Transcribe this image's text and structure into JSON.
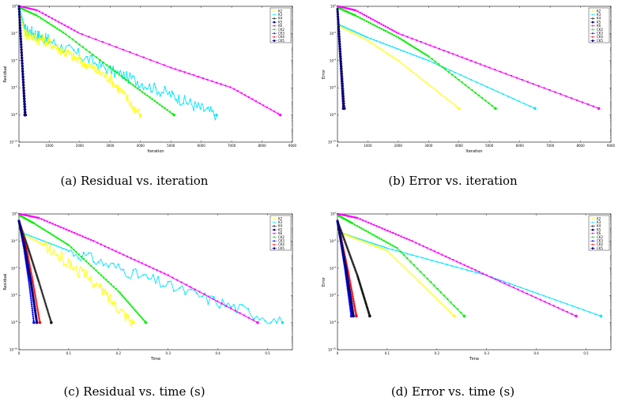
{
  "panels": [
    {
      "caption": "(a)  Residual vs. iteration"
    },
    {
      "caption": "(b)  Error vs. iteration"
    },
    {
      "caption": "(c)  Residual vs. time (s)"
    },
    {
      "caption": "(d)  Error vs. time (s)"
    }
  ],
  "legend_labels": [
    "K2",
    "K3",
    "K4",
    "K5",
    "K6",
    "CK2",
    "CK3",
    "CK4",
    "CK5"
  ],
  "colors": {
    "cyan": "#00e5ff",
    "yellow": "#ffff00",
    "magenta": "#ff00ff",
    "green": "#00ee00",
    "black": "#000000",
    "blue": "#0000ff",
    "red": "#ee0000",
    "navy": "#000080"
  },
  "chart_data": [
    {
      "type": "line",
      "xlabel": "Iteration",
      "ylabel": "Residual",
      "ylog": true,
      "xlim": [
        0,
        9000
      ],
      "ylim": [
        1e-10,
        1
      ],
      "xticks": [
        0,
        1000,
        2000,
        3000,
        4000,
        5000,
        6000,
        7000,
        8000,
        9000
      ],
      "yticks_exp": [
        0,
        -2,
        -4,
        -6,
        -8,
        -10
      ],
      "series": [
        {
          "name": "K3",
          "color": "cyan",
          "marker": "star",
          "noisy": true,
          "points": [
            [
              0,
              1
            ],
            [
              200,
              0.02
            ],
            [
              1000,
              0.003
            ],
            [
              3000,
              2e-05
            ],
            [
              5000,
              3e-07
            ],
            [
              6500,
              1e-08
            ]
          ]
        },
        {
          "name": "K4",
          "color": "yellow",
          "marker": "x",
          "noisy": true,
          "points": [
            [
              0,
              0.5
            ],
            [
              200,
              0.01
            ],
            [
              1000,
              0.002
            ],
            [
              2000,
              0.0001
            ],
            [
              3000,
              5e-06
            ],
            [
              4000,
              1e-08
            ]
          ]
        },
        {
          "name": "K5",
          "color": "green",
          "marker": "triangle",
          "noisy": false,
          "points": [
            [
              0,
              0.8
            ],
            [
              600,
              0.2
            ],
            [
              1500,
              0.01
            ],
            [
              3000,
              3e-05
            ],
            [
              4000,
              6e-07
            ],
            [
              5100,
              1e-08
            ]
          ]
        },
        {
          "name": "K6",
          "color": "magenta",
          "marker": "triangle",
          "noisy": false,
          "points": [
            [
              0,
              1
            ],
            [
              600,
              0.5
            ],
            [
              2000,
              0.01
            ],
            [
              5000,
              3e-05
            ],
            [
              7000,
              1e-06
            ],
            [
              8600,
              1e-08
            ]
          ]
        },
        {
          "name": "CK2",
          "color": "black",
          "marker": "circle",
          "noisy": false,
          "points": [
            [
              0,
              1
            ],
            [
              220,
              1e-08
            ]
          ]
        },
        {
          "name": "CK3",
          "color": "blue",
          "marker": "diamond",
          "noisy": false,
          "points": [
            [
              0,
              1
            ],
            [
              190,
              1e-08
            ]
          ]
        },
        {
          "name": "CK4",
          "color": "red",
          "marker": "circle",
          "noisy": false,
          "points": [
            [
              0,
              1
            ],
            [
              210,
              1e-08
            ]
          ]
        },
        {
          "name": "CK5",
          "color": "navy",
          "marker": "square",
          "noisy": false,
          "points": [
            [
              0,
              1
            ],
            [
              200,
              1e-08
            ]
          ]
        }
      ]
    },
    {
      "type": "line",
      "xlabel": "Iteration",
      "ylabel": "Error",
      "ylog": true,
      "xlim": [
        0,
        9000
      ],
      "ylim": [
        1e-10,
        1
      ],
      "xticks": [
        0,
        1000,
        2000,
        3000,
        4000,
        5000,
        6000,
        7000,
        8000,
        9000
      ],
      "yticks_exp": [
        0,
        -2,
        -4,
        -6,
        -8,
        -10
      ],
      "series": [
        {
          "name": "K3",
          "color": "cyan",
          "marker": "star",
          "noisy": false,
          "points": [
            [
              0,
              0.05
            ],
            [
              1000,
              0.005
            ],
            [
              3000,
              0.0001
            ],
            [
              6500,
              3e-08
            ]
          ]
        },
        {
          "name": "K4",
          "color": "yellow",
          "marker": "x",
          "noisy": false,
          "points": [
            [
              0,
              0.04
            ],
            [
              1000,
              0.003
            ],
            [
              2000,
              0.0001
            ],
            [
              4000,
              3e-08
            ]
          ]
        },
        {
          "name": "K5",
          "color": "green",
          "marker": "triangle",
          "noisy": false,
          "points": [
            [
              0,
              0.8
            ],
            [
              600,
              0.2
            ],
            [
              2000,
              0.005
            ],
            [
              3000,
              0.0002
            ],
            [
              5200,
              3e-08
            ]
          ]
        },
        {
          "name": "K6",
          "color": "magenta",
          "marker": "triangle",
          "noisy": false,
          "points": [
            [
              0,
              1
            ],
            [
              600,
              0.5
            ],
            [
              2000,
              0.01
            ],
            [
              5000,
              3e-05
            ],
            [
              8600,
              3e-08
            ]
          ]
        },
        {
          "name": "CK2",
          "color": "black",
          "marker": "circle",
          "noisy": false,
          "points": [
            [
              0,
              0.6
            ],
            [
              230,
              3e-08
            ]
          ]
        },
        {
          "name": "CK3",
          "color": "blue",
          "marker": "diamond",
          "noisy": false,
          "points": [
            [
              0,
              0.6
            ],
            [
              190,
              3e-08
            ]
          ]
        },
        {
          "name": "CK4",
          "color": "red",
          "marker": "circle",
          "noisy": false,
          "points": [
            [
              0,
              0.6
            ],
            [
              210,
              3e-08
            ]
          ]
        },
        {
          "name": "CK5",
          "color": "navy",
          "marker": "square",
          "noisy": false,
          "points": [
            [
              0,
              0.6
            ],
            [
              200,
              3e-08
            ]
          ]
        }
      ]
    },
    {
      "type": "line",
      "xlabel": "Time",
      "ylabel": "Residual",
      "ylog": true,
      "xlim": [
        0,
        0.55
      ],
      "ylim": [
        1e-10,
        1
      ],
      "xticks": [
        0,
        0.1,
        0.2,
        0.3,
        0.4,
        0.5
      ],
      "yticks_exp": [
        0,
        -2,
        -4,
        -6,
        -8,
        -10
      ],
      "series": [
        {
          "name": "K3",
          "color": "cyan",
          "marker": "star",
          "noisy": true,
          "points": [
            [
              0,
              0.05
            ],
            [
              0.1,
              0.002
            ],
            [
              0.3,
              5e-06
            ],
            [
              0.53,
              1e-08
            ]
          ]
        },
        {
          "name": "K4",
          "color": "yellow",
          "marker": "x",
          "noisy": true,
          "points": [
            [
              0,
              0.05
            ],
            [
              0.05,
              0.005
            ],
            [
              0.15,
              1e-05
            ],
            [
              0.23,
              1e-08
            ]
          ]
        },
        {
          "name": "K5",
          "color": "green",
          "marker": "triangle",
          "noisy": false,
          "points": [
            [
              0,
              0.8
            ],
            [
              0.03,
              0.2
            ],
            [
              0.1,
              0.005
            ],
            [
              0.2,
              2e-06
            ],
            [
              0.255,
              1e-08
            ]
          ]
        },
        {
          "name": "K6",
          "color": "magenta",
          "marker": "triangle",
          "noisy": false,
          "points": [
            [
              0,
              1
            ],
            [
              0.04,
              0.5
            ],
            [
              0.15,
              0.01
            ],
            [
              0.3,
              3e-05
            ],
            [
              0.48,
              1e-08
            ]
          ]
        },
        {
          "name": "CK2",
          "color": "black",
          "marker": "circle",
          "noisy": false,
          "points": [
            [
              0,
              0.3
            ],
            [
              0.02,
              0.002
            ],
            [
              0.04,
              1e-05
            ],
            [
              0.065,
              1e-08
            ]
          ]
        },
        {
          "name": "CK3",
          "color": "blue",
          "marker": "diamond",
          "noisy": false,
          "points": [
            [
              0,
              0.3
            ],
            [
              0.01,
              0.003
            ],
            [
              0.02,
              1e-05
            ],
            [
              0.03,
              1e-08
            ]
          ]
        },
        {
          "name": "CK4",
          "color": "red",
          "marker": "circle",
          "noisy": false,
          "points": [
            [
              0,
              0.3
            ],
            [
              0.015,
              0.003
            ],
            [
              0.028,
              1e-05
            ],
            [
              0.042,
              1e-08
            ]
          ]
        },
        {
          "name": "CK5",
          "color": "navy",
          "marker": "square",
          "noisy": false,
          "points": [
            [
              0,
              0.3
            ],
            [
              0.012,
              0.003
            ],
            [
              0.024,
              1e-05
            ],
            [
              0.036,
              1e-08
            ]
          ]
        }
      ]
    },
    {
      "type": "line",
      "xlabel": "Time",
      "ylabel": "Error",
      "ylog": true,
      "xlim": [
        0,
        0.55
      ],
      "ylim": [
        1e-10,
        1
      ],
      "xticks": [
        0,
        0.1,
        0.2,
        0.3,
        0.4,
        0.5
      ],
      "yticks_exp": [
        0,
        -2,
        -4,
        -6,
        -8,
        -10
      ],
      "series": [
        {
          "name": "K3",
          "color": "cyan",
          "marker": "star",
          "noisy": false,
          "points": [
            [
              0,
              0.05
            ],
            [
              0.1,
              0.003
            ],
            [
              0.3,
              3e-05
            ],
            [
              0.53,
              3e-08
            ]
          ]
        },
        {
          "name": "K4",
          "color": "yellow",
          "marker": "x",
          "noisy": false,
          "points": [
            [
              0,
              0.05
            ],
            [
              0.1,
              0.002
            ],
            [
              0.235,
              3e-08
            ]
          ]
        },
        {
          "name": "K5",
          "color": "green",
          "marker": "triangle",
          "noisy": false,
          "points": [
            [
              0,
              0.8
            ],
            [
              0.03,
              0.2
            ],
            [
              0.12,
              0.003
            ],
            [
              0.255,
              3e-08
            ]
          ]
        },
        {
          "name": "K6",
          "color": "magenta",
          "marker": "triangle",
          "noisy": false,
          "points": [
            [
              0,
              1
            ],
            [
              0.04,
              0.5
            ],
            [
              0.15,
              0.01
            ],
            [
              0.3,
              3e-05
            ],
            [
              0.48,
              3e-08
            ]
          ]
        },
        {
          "name": "CK2",
          "color": "black",
          "marker": "circle",
          "noisy": false,
          "points": [
            [
              0,
              0.3
            ],
            [
              0.04,
              3e-05
            ],
            [
              0.065,
              3e-08
            ]
          ]
        },
        {
          "name": "CK3",
          "color": "blue",
          "marker": "diamond",
          "noisy": false,
          "points": [
            [
              0,
              0.3
            ],
            [
              0.015,
              0.0001
            ],
            [
              0.028,
              3e-08
            ]
          ]
        },
        {
          "name": "CK4",
          "color": "red",
          "marker": "circle",
          "noisy": false,
          "points": [
            [
              0,
              0.3
            ],
            [
              0.02,
              0.0001
            ],
            [
              0.038,
              3e-08
            ]
          ]
        },
        {
          "name": "CK5",
          "color": "navy",
          "marker": "square",
          "noisy": false,
          "points": [
            [
              0,
              0.3
            ],
            [
              0.017,
              0.0001
            ],
            [
              0.032,
              3e-08
            ]
          ]
        }
      ]
    }
  ]
}
